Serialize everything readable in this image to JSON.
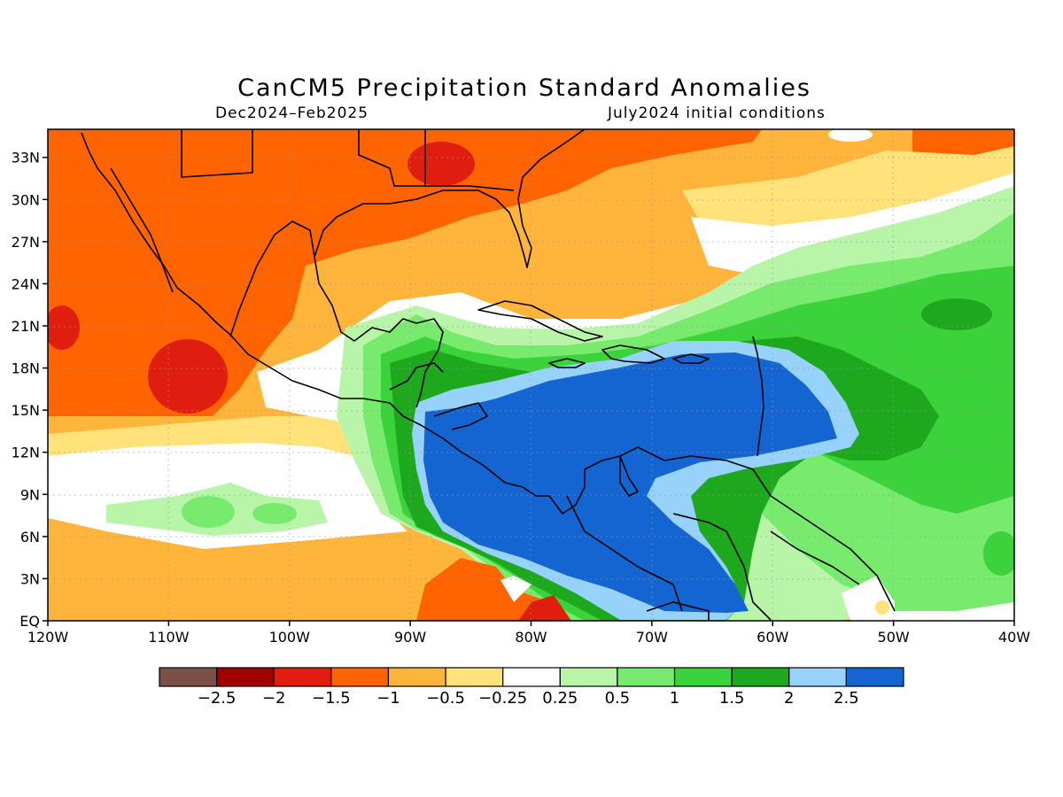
{
  "map": {
    "title": "CanCM5 Precipitation Standard Anomalies",
    "period": "Dec2024–Feb2025",
    "initial_conditions": "July2024 initial conditions",
    "lon_range": [
      -120,
      -40
    ],
    "lat_range": [
      0,
      35
    ],
    "grid": "dotted",
    "x_ticks": [
      {
        "lon": -120,
        "label": "120W"
      },
      {
        "lon": -110,
        "label": "110W"
      },
      {
        "lon": -100,
        "label": "100W"
      },
      {
        "lon": -90,
        "label": "90W"
      },
      {
        "lon": -80,
        "label": "80W"
      },
      {
        "lon": -70,
        "label": "70W"
      },
      {
        "lon": -60,
        "label": "60W"
      },
      {
        "lon": -50,
        "label": "50W"
      },
      {
        "lon": -40,
        "label": "40W"
      }
    ],
    "y_ticks": [
      {
        "lat": 0,
        "label": "EQ"
      },
      {
        "lat": 3,
        "label": "3N"
      },
      {
        "lat": 6,
        "label": "6N"
      },
      {
        "lat": 9,
        "label": "9N"
      },
      {
        "lat": 12,
        "label": "12N"
      },
      {
        "lat": 15,
        "label": "15N"
      },
      {
        "lat": 18,
        "label": "18N"
      },
      {
        "lat": 21,
        "label": "21N"
      },
      {
        "lat": 24,
        "label": "24N"
      },
      {
        "lat": 27,
        "label": "27N"
      },
      {
        "lat": 30,
        "label": "30N"
      },
      {
        "lat": 33,
        "label": "33N"
      }
    ]
  },
  "colorbar": {
    "colors": [
      "#7a5048",
      "#a00000",
      "#e01e10",
      "#ff6400",
      "#ffb43c",
      "#ffe27a",
      "#ffffff",
      "#b8f5a8",
      "#78ea6e",
      "#3cd23c",
      "#1ea81e",
      "#96d2fa",
      "#1464d2"
    ],
    "labels": [
      "−2.5",
      "−2",
      "−1.5",
      "−1",
      "−0.5",
      "−0.25",
      "0.25",
      "0.5",
      "1",
      "1.5",
      "2",
      "2.5"
    ]
  }
}
